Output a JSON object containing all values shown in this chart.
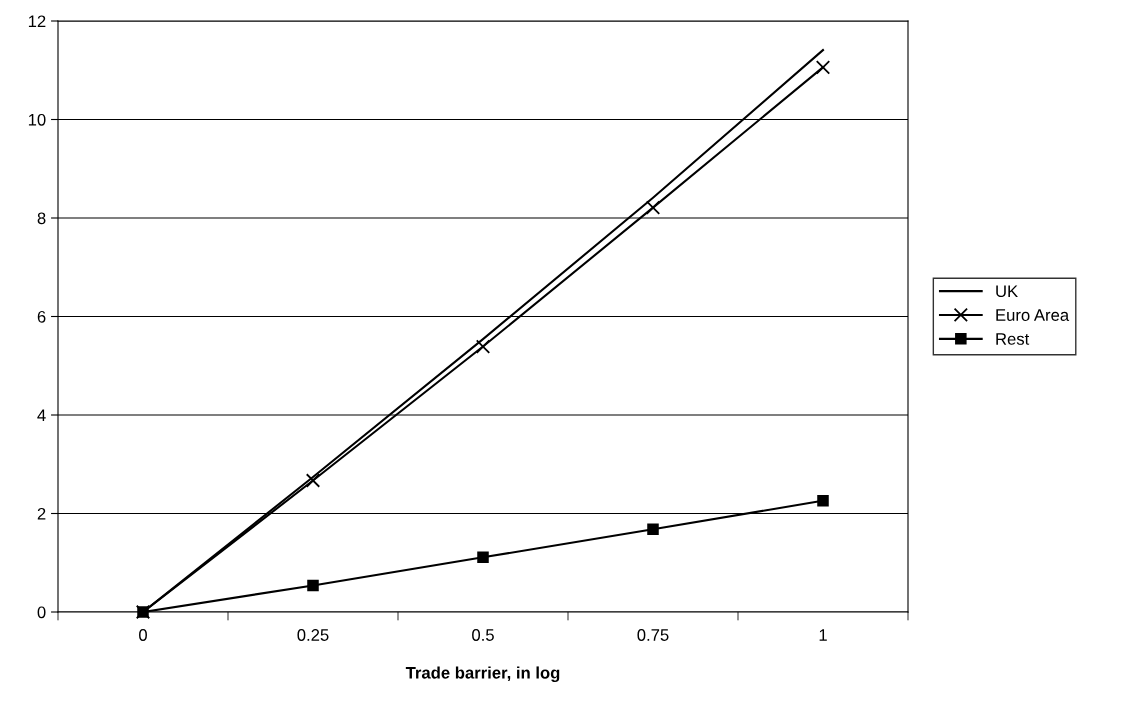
{
  "chart_data": {
    "type": "line",
    "xlabel": "Trade barrier, in log",
    "categories": [
      "0",
      "0.25",
      "0.5",
      "0.75",
      "1"
    ],
    "series": [
      {
        "name": "UK",
        "color": "#000000",
        "marker": "none",
        "values": [
          0,
          2.74,
          5.54,
          8.41,
          11.41
        ]
      },
      {
        "name": "Euro Area",
        "color": "#000000",
        "marker": "cross",
        "values": [
          0,
          2.67,
          5.39,
          8.21,
          11.06
        ]
      },
      {
        "name": "Rest",
        "color": "#000000",
        "marker": "square",
        "values": [
          0,
          0.54,
          1.11,
          1.68,
          2.26
        ]
      }
    ],
    "ylim": [
      0,
      12
    ],
    "yticks": [
      0,
      2,
      4,
      6,
      8,
      10,
      12
    ],
    "grid": "y",
    "legend": "right",
    "line_style": "solid"
  }
}
